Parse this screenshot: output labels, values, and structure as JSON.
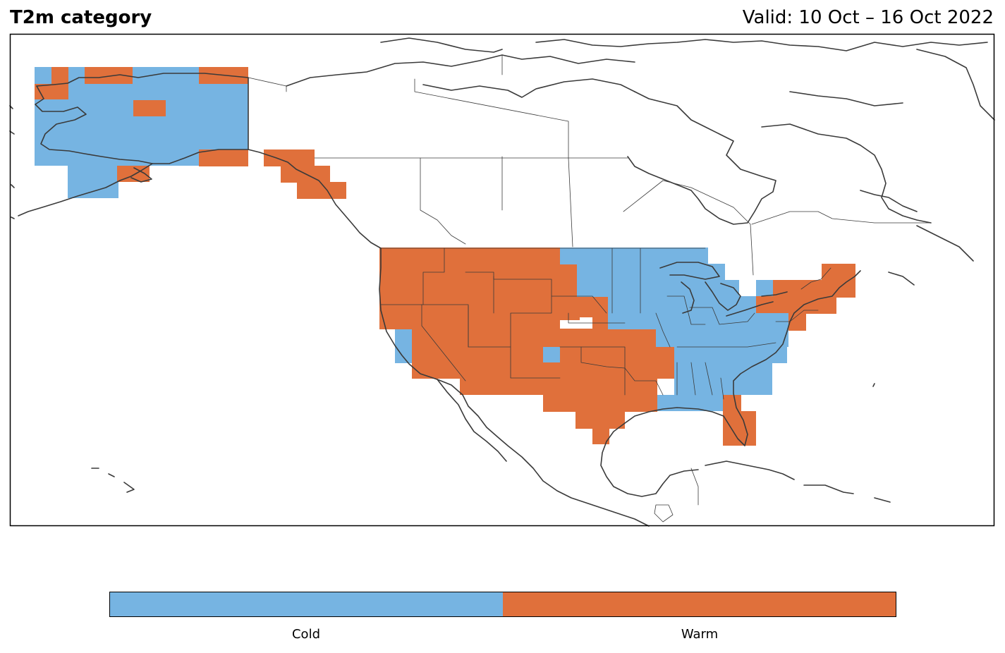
{
  "header": {
    "title": "T2m category",
    "valid": "Valid: 10 Oct – 16 Oct 2022"
  },
  "legend": {
    "categories": [
      {
        "label": "Cold",
        "color": "#76b4e2"
      },
      {
        "label": "Warm",
        "color": "#e0703b"
      }
    ]
  },
  "colors": {
    "cold": "#76b4e2",
    "warm": "#e0703b",
    "coastline": "#3a3a3a",
    "frame": "#000000"
  }
}
